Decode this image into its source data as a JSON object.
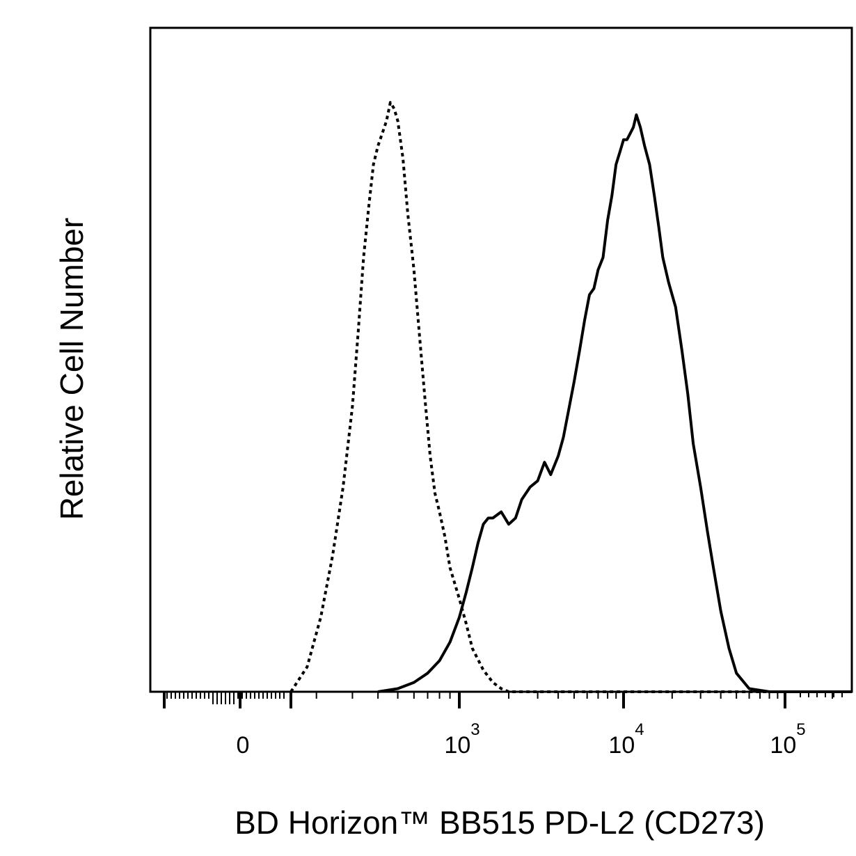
{
  "chart_data": {
    "type": "line",
    "title": "",
    "xlabel": "BD Horizon™ BB515 PD-L2 (CD273)",
    "ylabel": "Relative Cell Number",
    "x_scale": "biexponential",
    "xlim": [
      -200,
      200000
    ],
    "ylim": [
      0,
      100
    ],
    "x_ticks": [
      {
        "value": 0,
        "base": "0",
        "exp": ""
      },
      {
        "value": 1000,
        "base": "10",
        "exp": "3"
      },
      {
        "value": 10000,
        "base": "10",
        "exp": "4"
      },
      {
        "value": 100000,
        "base": "10",
        "exp": "5"
      }
    ],
    "grid": false,
    "legend": "none",
    "series": [
      {
        "line_style": "dotted",
        "color": "#000000",
        "x": [
          150,
          180,
          210,
          240,
          270,
          300,
          320,
          340,
          360,
          380,
          400,
          420,
          440,
          460,
          480,
          500,
          530,
          560,
          600,
          640,
          680,
          720,
          760,
          800,
          850,
          900,
          1000,
          1100,
          1200,
          1400,
          1600,
          1800,
          2000,
          2500,
          3000,
          10000,
          100000
        ],
        "y": [
          0,
          4,
          12,
          22,
          33,
          46,
          58,
          70,
          78,
          85,
          88,
          90,
          92,
          95,
          94,
          92,
          86,
          77,
          68,
          57,
          47,
          38,
          32,
          29,
          25,
          20,
          15,
          11,
          7,
          3.5,
          1.5,
          0.5,
          0,
          0,
          0,
          0,
          0
        ]
      },
      {
        "line_style": "solid",
        "color": "#000000",
        "x": [
          400,
          500,
          600,
          700,
          800,
          900,
          1000,
          1100,
          1200,
          1300,
          1400,
          1500,
          1600,
          1800,
          2000,
          2200,
          2400,
          2700,
          3000,
          3300,
          3600,
          4000,
          4300,
          4600,
          5000,
          5400,
          5800,
          6200,
          6600,
          7000,
          7500,
          8000,
          8500,
          9000,
          9500,
          10000,
          10500,
          11000,
          11500,
          12000,
          12700,
          13500,
          14500,
          15500,
          16500,
          17500,
          19000,
          21000,
          23000,
          25000,
          27000,
          30000,
          33000,
          36000,
          40000,
          45000,
          50000,
          60000,
          80000,
          120000,
          200000
        ],
        "y": [
          0,
          0.5,
          1.5,
          3,
          5,
          8,
          12,
          16,
          20,
          24,
          27,
          28,
          28,
          29,
          27,
          28,
          31,
          33,
          34,
          37,
          35,
          38,
          41,
          45,
          50,
          55,
          60,
          64,
          65,
          68,
          70,
          76,
          80,
          85,
          87,
          89,
          89,
          90,
          91,
          93,
          91,
          88,
          85,
          80,
          75,
          70,
          66,
          62,
          55,
          48,
          40,
          33,
          26,
          20,
          13,
          7,
          3,
          0.5,
          0,
          0,
          0
        ]
      }
    ]
  }
}
